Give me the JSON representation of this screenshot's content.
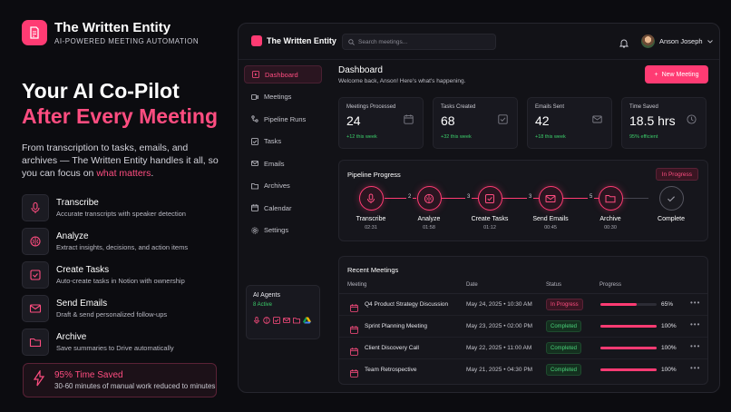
{
  "brand": {
    "title": "The Written Entity",
    "tagline": "AI-POWERED MEETING AUTOMATION"
  },
  "hero": {
    "line1": "Your AI Co-Pilot",
    "line2": "After Every Meeting",
    "desc_pre": "From transcription to tasks, emails, and archives — The Written Entity handles it all, so you can focus on ",
    "desc_accent": "what matters",
    "desc_post": "."
  },
  "features": [
    {
      "title": "Transcribe",
      "desc": "Accurate transcripts with speaker detection",
      "icon": "microphone-icon"
    },
    {
      "title": "Analyze",
      "desc": "Extract insights, decisions, and action items",
      "icon": "brain-icon"
    },
    {
      "title": "Create Tasks",
      "desc": "Auto-create tasks in Notion with ownership",
      "icon": "checkbox-icon"
    },
    {
      "title": "Send Emails",
      "desc": "Draft & send personalized follow-ups",
      "icon": "mail-icon"
    },
    {
      "title": "Archive",
      "desc": "Save summaries to Drive automatically",
      "icon": "folder-icon"
    }
  ],
  "time_saved": {
    "title": "95% Time Saved",
    "desc": "30-60 minutes of manual work reduced to minutes"
  },
  "app": {
    "title": "The Written Entity",
    "search_placeholder": "Search meetings...",
    "user_name": "Anson Joseph",
    "nav": [
      {
        "label": "Dashboard",
        "icon": "dashboard-icon"
      },
      {
        "label": "Meetings",
        "icon": "video-icon"
      },
      {
        "label": "Pipeline Runs",
        "icon": "pipeline-icon"
      },
      {
        "label": "Tasks",
        "icon": "checkbox-icon"
      },
      {
        "label": "Emails",
        "icon": "mail-icon"
      },
      {
        "label": "Archives",
        "icon": "folder-icon"
      },
      {
        "label": "Calendar",
        "icon": "calendar-icon"
      },
      {
        "label": "Settings",
        "icon": "gear-icon"
      }
    ],
    "agents": {
      "title": "AI Agents",
      "count": "8 Active"
    },
    "dashboard": {
      "title": "Dashboard",
      "subtitle": "Welcome back, Anson! Here's what's happening.",
      "new_meeting": "New Meeting"
    },
    "stats": [
      {
        "label": "Meetings Processed",
        "value": "24",
        "delta": "+12 this week",
        "icon": "calendar-icon"
      },
      {
        "label": "Tasks Created",
        "value": "68",
        "delta": "+32 this week",
        "icon": "checkbox-icon"
      },
      {
        "label": "Emails Sent",
        "value": "42",
        "delta": "+18 this week",
        "icon": "mail-icon"
      },
      {
        "label": "Time Saved",
        "value": "18.5 hrs",
        "delta": "95% efficient",
        "icon": "clock-icon"
      }
    ],
    "pipeline": {
      "title": "Pipeline Progress",
      "badge": "In Progress",
      "stages": [
        {
          "name": "Transcribe",
          "time": "02:31"
        },
        {
          "name": "Analyze",
          "time": "01:58"
        },
        {
          "name": "Create Tasks",
          "time": "01:12"
        },
        {
          "name": "Send Emails",
          "time": "00:45"
        },
        {
          "name": "Archive",
          "time": "00:30"
        },
        {
          "name": "Complete",
          "time": ""
        }
      ],
      "connectors": [
        "2",
        "3",
        "3",
        "5"
      ]
    },
    "recent": {
      "title": "Recent Meetings",
      "headers": {
        "meeting": "Meeting",
        "date": "Date",
        "status": "Status",
        "progress": "Progress"
      },
      "rows": [
        {
          "name": "Q4 Product Strategy Discussion",
          "date": "May 24, 2025 • 10:30 AM",
          "status": "In Progress",
          "progress": 65,
          "pct": "65%"
        },
        {
          "name": "Sprint Planning Meeting",
          "date": "May 23, 2025 • 02:00 PM",
          "status": "Completed",
          "progress": 100,
          "pct": "100%"
        },
        {
          "name": "Client Discovery Call",
          "date": "May 22, 2025 • 11:00 AM",
          "status": "Completed",
          "progress": 100,
          "pct": "100%"
        },
        {
          "name": "Team Retrospective",
          "date": "May 21, 2025 • 04:30 PM",
          "status": "Completed",
          "progress": 100,
          "pct": "100%"
        }
      ]
    }
  }
}
